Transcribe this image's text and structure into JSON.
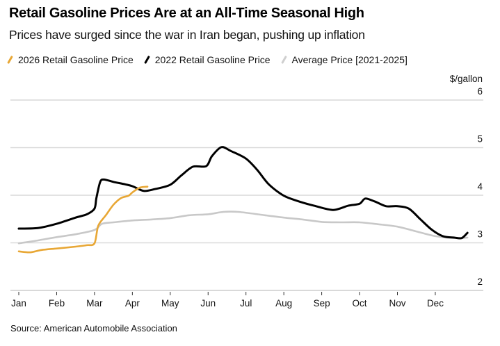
{
  "header": {
    "title": "Retail Gasoline Prices Are at an All-Time Seasonal High",
    "subtitle": "Prices have surged since the war in Iran began, pushing up inflation"
  },
  "footer": {
    "source": "Source: American Automobile Association"
  },
  "chart_data": {
    "type": "line",
    "title": "Retail Gasoline Prices Are at an All-Time Seasonal High",
    "subtitle": "Prices have surged since the war in Iran began, pushing up inflation",
    "xlabel": "",
    "ylabel": "$/gallon",
    "x_unit": "months since Jan 1",
    "xlim": [
      0,
      11.9
    ],
    "ylim": [
      2,
      6
    ],
    "yticks": [
      2,
      3,
      4,
      5,
      6
    ],
    "ytick_labels": [
      "2",
      "3",
      "4",
      "5",
      "6"
    ],
    "xticks": [
      0,
      1,
      2,
      3,
      4,
      5,
      6,
      7,
      8,
      9,
      10,
      11
    ],
    "xtick_labels": [
      "Jan",
      "Feb",
      "Mar",
      "Apr",
      "May",
      "Jun",
      "Jul",
      "Aug",
      "Sep",
      "Oct",
      "Nov",
      "Dec"
    ],
    "grid": true,
    "legend_position": "top",
    "series": [
      {
        "name": "2026 Retail Gasoline Price",
        "color": "#e8a735",
        "x": [
          0,
          0.3,
          0.6,
          1.0,
          1.5,
          1.8,
          2.0,
          2.1,
          2.3,
          2.5,
          2.7,
          2.9,
          3.0,
          3.2,
          3.4
        ],
        "values": [
          2.82,
          2.8,
          2.85,
          2.88,
          2.92,
          2.95,
          2.99,
          3.36,
          3.58,
          3.8,
          3.94,
          3.99,
          4.06,
          4.16,
          4.18
        ]
      },
      {
        "name": "2022 Retail Gasoline Price",
        "color": "#000000",
        "x": [
          0,
          0.5,
          1.0,
          1.5,
          1.8,
          2.0,
          2.05,
          2.15,
          2.25,
          2.5,
          2.8,
          3.0,
          3.3,
          3.6,
          4.0,
          4.3,
          4.6,
          4.95,
          5.1,
          5.35,
          5.6,
          6.0,
          6.3,
          6.6,
          7.0,
          7.4,
          7.8,
          8.3,
          8.7,
          9.0,
          9.15,
          9.4,
          9.7,
          10.0,
          10.3,
          10.6,
          10.9,
          11.2,
          11.5,
          11.7,
          11.85
        ],
        "values": [
          3.3,
          3.31,
          3.4,
          3.53,
          3.6,
          3.72,
          3.94,
          4.28,
          4.33,
          4.28,
          4.23,
          4.19,
          4.09,
          4.13,
          4.22,
          4.42,
          4.6,
          4.61,
          4.82,
          5.01,
          4.93,
          4.77,
          4.53,
          4.23,
          3.99,
          3.87,
          3.78,
          3.69,
          3.78,
          3.82,
          3.93,
          3.87,
          3.77,
          3.77,
          3.72,
          3.5,
          3.28,
          3.14,
          3.11,
          3.1,
          3.21
        ]
      },
      {
        "name": "Average Price [2021-2025]",
        "color": "#c8c8c8",
        "x": [
          0,
          0.5,
          1.0,
          1.5,
          2.0,
          2.2,
          2.5,
          3.0,
          3.5,
          4.0,
          4.5,
          5.0,
          5.4,
          5.8,
          6.5,
          7.0,
          7.5,
          8.0,
          8.5,
          9.0,
          9.5,
          10.0,
          10.5,
          11.0,
          11.5,
          11.85
        ],
        "values": [
          2.99,
          3.05,
          3.12,
          3.18,
          3.27,
          3.4,
          3.43,
          3.47,
          3.49,
          3.52,
          3.58,
          3.6,
          3.65,
          3.65,
          3.58,
          3.53,
          3.49,
          3.44,
          3.43,
          3.43,
          3.39,
          3.34,
          3.24,
          3.14,
          3.1,
          3.11
        ]
      }
    ]
  }
}
